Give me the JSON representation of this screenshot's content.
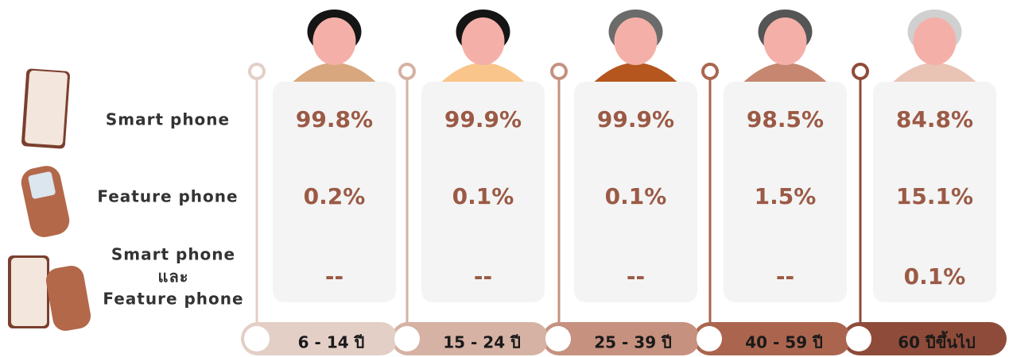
{
  "columns": [
    "6 - 14 ปี",
    "15 - 24 ปี",
    "25 - 39 ปี",
    "40 - 59 ปี",
    "60 ปีขึ้นไป"
  ],
  "rows": [
    {
      "label": [
        "Smart phone"
      ],
      "cells": [
        "99.8%",
        "99.9%",
        "99.9%",
        "98.5%",
        "84.8%"
      ]
    },
    {
      "label": [
        "Feature phone"
      ],
      "cells": [
        "0.2%",
        "0.1%",
        "0.1%",
        "1.5%",
        "15.1%"
      ]
    },
    {
      "label": [
        "Smart phone",
        "และ",
        "Feature phone"
      ],
      "cells": [
        "--",
        "--",
        "--",
        "--",
        "0.1%"
      ]
    }
  ]
}
